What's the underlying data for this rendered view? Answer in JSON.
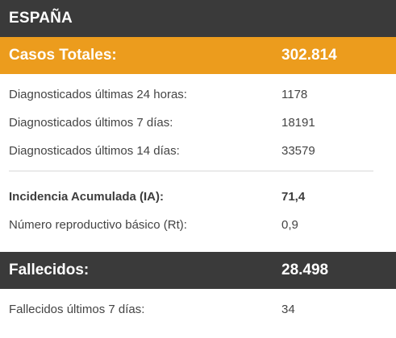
{
  "title": "ESPAÑA",
  "cases": {
    "label": "Casos Totales:",
    "value": "302.814",
    "rows": [
      {
        "label": "Diagnosticados últimas 24 horas:",
        "value": "1178"
      },
      {
        "label": "Diagnosticados últimos 7 días:",
        "value": "18191"
      },
      {
        "label": "Diagnosticados últimos 14 días:",
        "value": "33579"
      }
    ]
  },
  "indicators": {
    "rows": [
      {
        "label": "Incidencia Acumulada (IA):",
        "value": "71,4"
      },
      {
        "label": "Número reproductivo básico (Rt):",
        "value": "0,9"
      }
    ]
  },
  "deaths": {
    "label": "Fallecidos:",
    "value": "28.498",
    "rows": [
      {
        "label": "Fallecidos últimos 7 días:",
        "value": "34"
      }
    ]
  },
  "colors": {
    "header_bg": "#3a3a3a",
    "accent_orange": "#ec9c1d"
  }
}
